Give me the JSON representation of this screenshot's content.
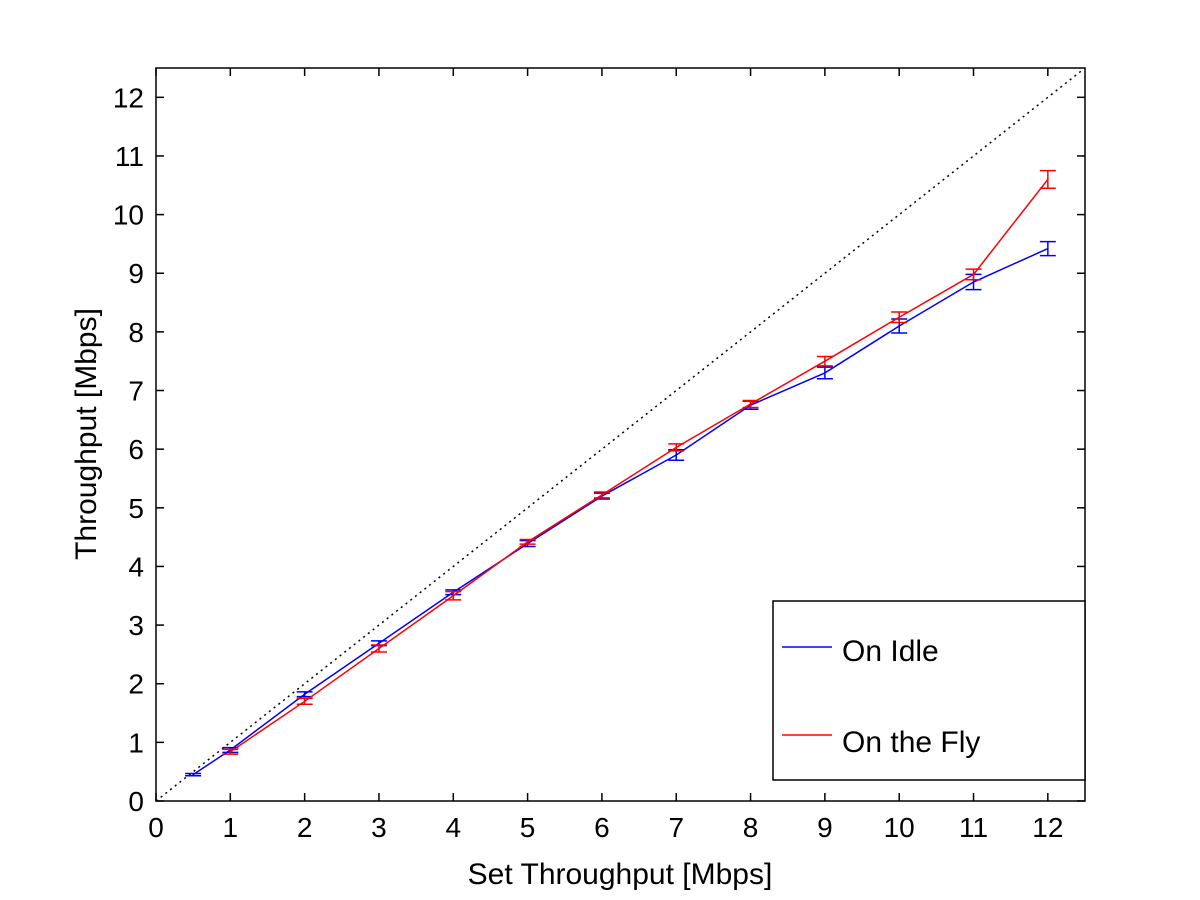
{
  "chart_data": {
    "type": "line",
    "title": "",
    "xlabel": "Set Throughput [Mbps]",
    "ylabel": "Throughput [Mbps]",
    "xlim": [
      0,
      12.5
    ],
    "ylim": [
      0,
      12.5
    ],
    "xticks": [
      0,
      1,
      2,
      3,
      4,
      5,
      6,
      7,
      8,
      9,
      10,
      11,
      12
    ],
    "yticks": [
      0,
      1,
      2,
      3,
      4,
      5,
      6,
      7,
      8,
      9,
      10,
      11,
      12
    ],
    "grid": false,
    "legend_position": "bottom-right",
    "reference_line": {
      "type": "diagonal",
      "style": "dotted",
      "color": "#000000"
    },
    "series": [
      {
        "name": "On Idle",
        "color": "#0000ff",
        "x": [
          0.5,
          1,
          2,
          3,
          4,
          5,
          6,
          7,
          8,
          9,
          10,
          11,
          12
        ],
        "y": [
          0.45,
          0.87,
          1.82,
          2.69,
          3.56,
          4.39,
          5.2,
          5.9,
          6.75,
          7.3,
          8.1,
          8.85,
          9.42
        ],
        "error": [
          0.02,
          0.04,
          0.04,
          0.04,
          0.04,
          0.05,
          0.05,
          0.09,
          0.07,
          0.1,
          0.12,
          0.13,
          0.12
        ]
      },
      {
        "name": "On the Fly",
        "color": "#ff0000",
        "x": [
          1,
          2,
          3,
          4,
          5,
          6,
          7,
          8,
          9,
          10,
          11,
          12
        ],
        "y": [
          0.84,
          1.7,
          2.6,
          3.5,
          4.42,
          5.22,
          6.03,
          6.77,
          7.5,
          8.25,
          8.98,
          10.6
        ],
        "error": [
          0.04,
          0.05,
          0.06,
          0.07,
          0.04,
          0.05,
          0.06,
          0.06,
          0.08,
          0.09,
          0.09,
          0.15
        ]
      }
    ]
  }
}
